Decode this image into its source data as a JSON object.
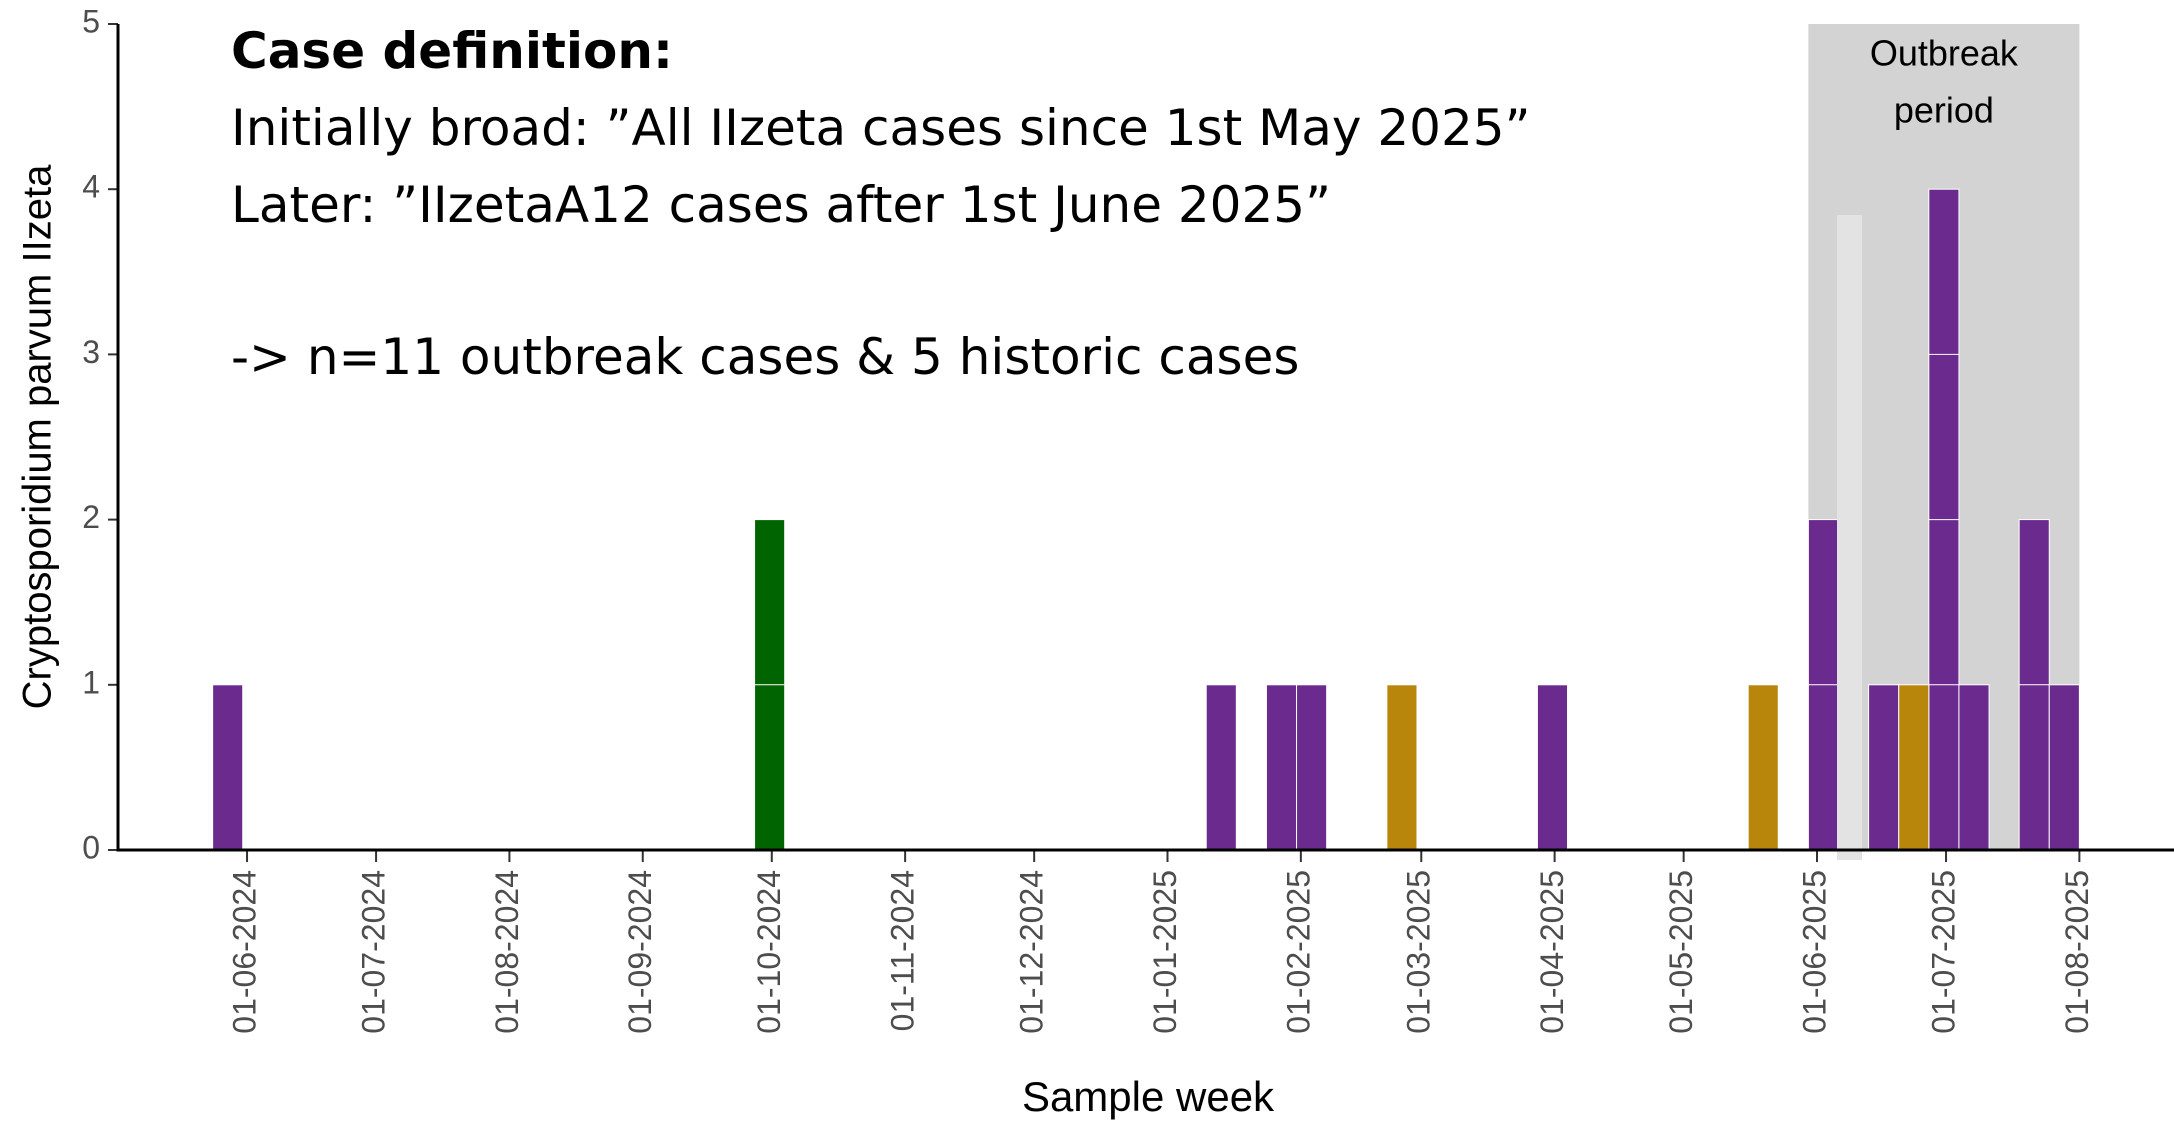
{
  "chart_data": {
    "type": "bar",
    "x_label": "Sample week",
    "y_label": "Cryptosporidium parvum IIzeta",
    "x": [
      "24-05-2024",
      "27-09-2024",
      "10-01-2025",
      "24-01-2025",
      "31-01-2025",
      "21-02-2025",
      "28-03-2025",
      "16-05-2025",
      "30-05-2025",
      "13-06-2025",
      "20-06-2025",
      "27-06-2025",
      "04-07-2025",
      "18-07-2025",
      "25-07-2025"
    ],
    "series": [
      {
        "color": "#6a2a8e",
        "values": [
          1,
          null,
          1,
          1,
          1,
          null,
          1,
          null,
          2,
          1,
          null,
          4,
          1,
          2,
          1
        ]
      },
      {
        "color": "#006400",
        "values": [
          null,
          2,
          null,
          null,
          null,
          null,
          null,
          null,
          null,
          null,
          null,
          null,
          null,
          null,
          null
        ]
      },
      {
        "color": "#b8860b",
        "values": [
          null,
          null,
          null,
          null,
          null,
          1,
          null,
          1,
          null,
          null,
          1,
          null,
          null,
          null,
          null
        ]
      }
    ],
    "xlim": [
      "02-05-2024",
      "23-08-2025"
    ],
    "xticks": [
      "01-06-2024",
      "01-07-2024",
      "01-08-2024",
      "01-09-2024",
      "01-10-2024",
      "01-11-2024",
      "01-12-2024",
      "01-01-2025",
      "01-02-2025",
      "01-03-2025",
      "01-04-2025",
      "01-05-2025",
      "01-06-2025",
      "01-07-2025",
      "01-08-2025"
    ],
    "ylim": [
      0,
      5
    ],
    "yticks": [
      0,
      1,
      2,
      3,
      4,
      5
    ],
    "outbreak_period": {
      "start": "30-05-2025",
      "end": "01-08-2025",
      "label": [
        "Outbreak",
        "period"
      ],
      "color": "#d3d3d3"
    },
    "annotation": {
      "heading": "Case definition:",
      "lines": [
        "Initially broad: ”All IIzeta cases since 1st May 2025”",
        "Later: ”IIzetaA12 cases after 1st June 2025”",
        "-> n=11 outbreak cases & 5 historic cases"
      ]
    }
  }
}
